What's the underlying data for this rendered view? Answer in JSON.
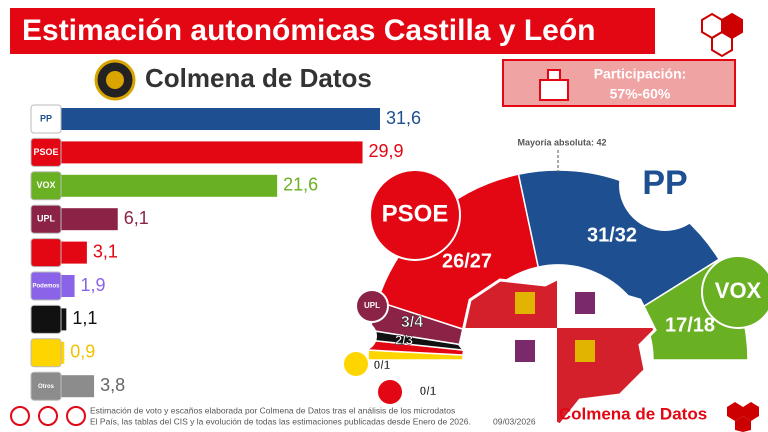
{
  "title": "Estimación autonómicas Castilla y León",
  "brand": "Colmena de Datos",
  "participation": {
    "label": "Participación:",
    "value": "57%-60%"
  },
  "majority": "Mayoría absoluta: 42",
  "seats": [
    "31/32",
    "26/27",
    "17/18",
    "3/4",
    "2/3",
    "0/1",
    "0/1"
  ],
  "footer": {
    "note_line1": "Estimación de voto y escaños elaborada por Colmena de Datos tras el análisis de los microdatos",
    "note_line2": "El País, las tablas del CIS y la evolución de todas las estimaciones publicadas desde Enero de 2026.",
    "date": "09/03/2026",
    "brand": "Colmena de Datos"
  },
  "chart_data": {
    "type": "bar",
    "orientation": "horizontal",
    "categories": [
      "PP",
      "PSOE",
      "VOX",
      "UPL",
      null,
      "Podemos",
      null,
      null,
      "Otros"
    ],
    "values": [
      31.6,
      29.9,
      21.6,
      6.1,
      3.1,
      1.9,
      1.1,
      0.9,
      3.8
    ],
    "value_labels": [
      "31,6",
      "29,9",
      "21,6",
      "6,1",
      "3,1",
      "1,9",
      "1,1",
      "0,9",
      "3,8"
    ],
    "colors": [
      "#1d4f91",
      "#e30613",
      "#6ab023",
      "#8b2346",
      "#e30613",
      "#8a63e8",
      "#111111",
      "#ffd500",
      "#8c8c8c"
    ],
    "value_label_colors": [
      "#1d4f91",
      "#e30613",
      "#6ab023",
      "#8b2346",
      "#e30613",
      "#8a63e8",
      "#111111",
      "#f2c200",
      "#666666"
    ]
  }
}
